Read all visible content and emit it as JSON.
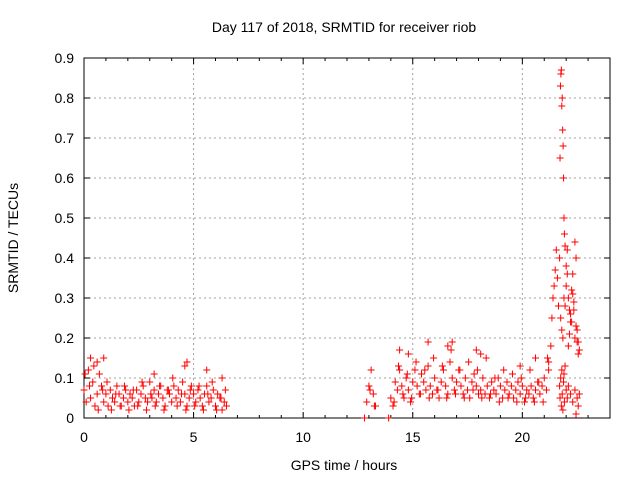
{
  "chart_data": {
    "type": "scatter",
    "title": "Day 117 of 2018, SRMTID for receiver riob",
    "xlabel": "GPS time / hours",
    "ylabel": "SRMTID / TECUs",
    "xlim": [
      0,
      24
    ],
    "ylim": [
      0,
      0.9
    ],
    "x_ticks": [
      0,
      5,
      10,
      15,
      20
    ],
    "x_tick_labels": [
      "0",
      "5",
      "10",
      "15",
      "20"
    ],
    "y_ticks": [
      0,
      0.1,
      0.2,
      0.3,
      0.4,
      0.5,
      0.6,
      0.7,
      0.8,
      0.9
    ],
    "y_tick_labels": [
      "0",
      "0.1",
      "0.2",
      "0.3",
      "0.4",
      "0.5",
      "0.6",
      "0.7",
      "0.8",
      "0.9"
    ],
    "grid": true,
    "marker": "+",
    "series_color": "#ff0000",
    "series": [
      {
        "name": "SRMTID",
        "x": [
          0.0,
          0.1,
          0.2,
          0.3,
          0.4,
          0.5,
          0.6,
          0.7,
          0.8,
          0.9,
          1.0,
          1.1,
          1.2,
          1.3,
          1.4,
          1.5,
          1.6,
          1.7,
          1.8,
          1.9,
          2.0,
          2.1,
          2.2,
          2.3,
          2.4,
          2.5,
          2.6,
          2.7,
          2.8,
          2.9,
          3.0,
          3.1,
          3.2,
          3.3,
          3.4,
          3.5,
          3.6,
          3.7,
          3.8,
          3.9,
          4.0,
          4.1,
          4.2,
          4.3,
          4.4,
          4.5,
          4.6,
          4.7,
          4.8,
          4.9,
          5.0,
          5.1,
          5.2,
          5.3,
          5.4,
          5.5,
          5.6,
          5.7,
          5.8,
          5.9,
          6.0,
          6.1,
          6.2,
          6.3,
          6.4,
          6.5,
          0.05,
          0.25,
          0.45,
          0.65,
          0.85,
          1.05,
          1.25,
          1.45,
          1.65,
          1.85,
          2.05,
          2.25,
          2.45,
          2.65,
          2.85,
          3.05,
          3.25,
          3.45,
          3.65,
          3.85,
          4.05,
          4.25,
          4.45,
          4.65,
          4.85,
          5.05,
          5.25,
          5.45,
          5.65,
          5.85,
          6.05,
          6.25,
          6.45,
          0.3,
          0.6,
          0.9,
          3.2,
          4.6,
          4.7,
          5.6,
          6.3,
          12.9,
          13.0,
          13.1,
          13.2,
          13.3,
          14.0,
          14.1,
          14.2,
          14.3,
          14.4,
          14.5,
          14.6,
          14.7,
          14.8,
          14.9,
          15.0,
          15.1,
          15.2,
          15.3,
          15.4,
          15.5,
          15.6,
          15.7,
          15.8,
          15.9,
          16.0,
          16.1,
          16.2,
          16.3,
          16.4,
          16.5,
          16.6,
          16.7,
          16.8,
          16.9,
          17.0,
          17.1,
          17.2,
          17.3,
          17.4,
          17.5,
          17.6,
          17.7,
          17.8,
          17.9,
          18.0,
          18.1,
          18.2,
          18.3,
          18.4,
          18.5,
          18.6,
          18.7,
          18.8,
          18.9,
          19.0,
          19.1,
          19.2,
          19.3,
          19.4,
          19.5,
          19.6,
          19.7,
          19.8,
          19.9,
          20.0,
          20.1,
          20.2,
          20.3,
          20.4,
          20.5,
          20.6,
          20.7,
          20.8,
          20.9,
          21.0,
          21.1,
          21.2,
          13.05,
          13.25,
          14.15,
          14.35,
          14.55,
          14.75,
          14.95,
          15.15,
          15.35,
          15.55,
          15.75,
          15.95,
          16.15,
          16.35,
          16.55,
          16.75,
          16.95,
          17.15,
          17.35,
          17.55,
          17.75,
          17.95,
          18.15,
          18.35,
          18.55,
          18.75,
          18.95,
          19.15,
          19.35,
          19.55,
          19.75,
          19.95,
          20.15,
          20.35,
          20.55,
          20.75,
          20.95,
          21.15,
          14.4,
          14.8,
          15.7,
          16.6,
          16.8,
          17.9,
          18.1,
          19.9,
          20.6,
          12.8,
          13.9,
          21.2,
          21.3,
          21.35,
          21.4,
          21.45,
          21.5,
          21.55,
          21.6,
          21.65,
          21.7,
          21.72,
          21.74,
          21.76,
          21.78,
          21.8,
          21.82,
          21.84,
          21.86,
          21.88,
          21.9,
          21.92,
          21.95,
          22.0,
          22.05,
          22.1,
          22.15,
          22.2,
          22.25,
          22.3,
          22.35,
          22.4,
          22.45,
          22.5,
          22.55,
          22.6,
          21.75,
          21.8,
          21.85,
          21.9,
          21.95,
          22.0,
          22.05,
          22.1,
          22.15,
          22.2,
          22.25,
          22.3,
          22.35,
          22.4,
          22.45,
          22.5,
          22.55,
          21.7,
          21.72,
          21.75,
          21.78,
          21.8,
          21.82,
          21.85,
          21.88,
          21.9,
          21.92,
          21.95,
          22.0,
          22.05,
          22.1,
          22.2,
          22.3,
          22.4,
          22.45,
          22.5,
          22.55,
          22.6
        ],
        "y": [
          0.07,
          0.04,
          0.12,
          0.05,
          0.09,
          0.03,
          0.06,
          0.11,
          0.08,
          0.04,
          0.06,
          0.03,
          0.07,
          0.05,
          0.04,
          0.08,
          0.06,
          0.03,
          0.05,
          0.07,
          0.04,
          0.06,
          0.05,
          0.03,
          0.07,
          0.04,
          0.06,
          0.08,
          0.05,
          0.04,
          0.09,
          0.05,
          0.07,
          0.04,
          0.06,
          0.08,
          0.05,
          0.03,
          0.07,
          0.06,
          0.04,
          0.08,
          0.05,
          0.07,
          0.04,
          0.09,
          0.06,
          0.03,
          0.05,
          0.08,
          0.06,
          0.04,
          0.07,
          0.05,
          0.03,
          0.06,
          0.08,
          0.04,
          0.05,
          0.07,
          0.03,
          0.06,
          0.05,
          0.02,
          0.04,
          0.03,
          0.11,
          0.08,
          0.13,
          0.02,
          0.07,
          0.09,
          0.02,
          0.06,
          0.03,
          0.08,
          0.02,
          0.07,
          0.03,
          0.09,
          0.02,
          0.06,
          0.03,
          0.08,
          0.02,
          0.07,
          0.1,
          0.03,
          0.06,
          0.02,
          0.07,
          0.03,
          0.08,
          0.02,
          0.06,
          0.09,
          0.02,
          0.05,
          0.07,
          0.15,
          0.14,
          0.15,
          0.11,
          0.13,
          0.14,
          0.12,
          0.1,
          0.04,
          0.08,
          0.12,
          0.06,
          0.03,
          0.05,
          0.03,
          0.09,
          0.07,
          0.12,
          0.08,
          0.05,
          0.1,
          0.07,
          0.04,
          0.09,
          0.12,
          0.08,
          0.06,
          0.11,
          0.09,
          0.07,
          0.13,
          0.08,
          0.06,
          0.1,
          0.07,
          0.05,
          0.09,
          0.12,
          0.08,
          0.06,
          0.14,
          0.1,
          0.07,
          0.09,
          0.12,
          0.08,
          0.06,
          0.1,
          0.07,
          0.05,
          0.09,
          0.11,
          0.08,
          0.06,
          0.07,
          0.1,
          0.06,
          0.08,
          0.05,
          0.09,
          0.07,
          0.06,
          0.1,
          0.08,
          0.05,
          0.07,
          0.09,
          0.06,
          0.08,
          0.05,
          0.07,
          0.09,
          0.06,
          0.08,
          0.04,
          0.07,
          0.06,
          0.08,
          0.05,
          0.07,
          0.09,
          0.06,
          0.08,
          0.1,
          0.07,
          0.12,
          0.07,
          0.03,
          0.04,
          0.13,
          0.06,
          0.11,
          0.05,
          0.14,
          0.06,
          0.12,
          0.05,
          0.15,
          0.07,
          0.13,
          0.05,
          0.17,
          0.06,
          0.12,
          0.05,
          0.14,
          0.07,
          0.12,
          0.05,
          0.15,
          0.06,
          0.1,
          0.04,
          0.12,
          0.05,
          0.11,
          0.04,
          0.1,
          0.05,
          0.12,
          0.04,
          0.09,
          0.04,
          0.15,
          0.17,
          0.16,
          0.19,
          0.18,
          0.19,
          0.17,
          0.16,
          0.13,
          0.15,
          0.0,
          0.0,
          0.14,
          0.18,
          0.25,
          0.3,
          0.33,
          0.37,
          0.42,
          0.35,
          0.28,
          0.4,
          0.65,
          0.83,
          0.86,
          0.87,
          0.78,
          0.8,
          0.72,
          0.68,
          0.6,
          0.5,
          0.46,
          0.43,
          0.38,
          0.42,
          0.3,
          0.27,
          0.24,
          0.32,
          0.36,
          0.29,
          0.44,
          0.4,
          0.22,
          0.19,
          0.17,
          0.25,
          0.22,
          0.2,
          0.3,
          0.28,
          0.33,
          0.36,
          0.18,
          0.21,
          0.26,
          0.24,
          0.31,
          0.27,
          0.2,
          0.23,
          0.19,
          0.16,
          0.08,
          0.05,
          0.1,
          0.03,
          0.12,
          0.06,
          0.02,
          0.09,
          0.11,
          0.04,
          0.13,
          0.07,
          0.05,
          0.08,
          0.06,
          0.04,
          0.07,
          0.01,
          0.05,
          0.03,
          0.06
        ]
      }
    ]
  }
}
